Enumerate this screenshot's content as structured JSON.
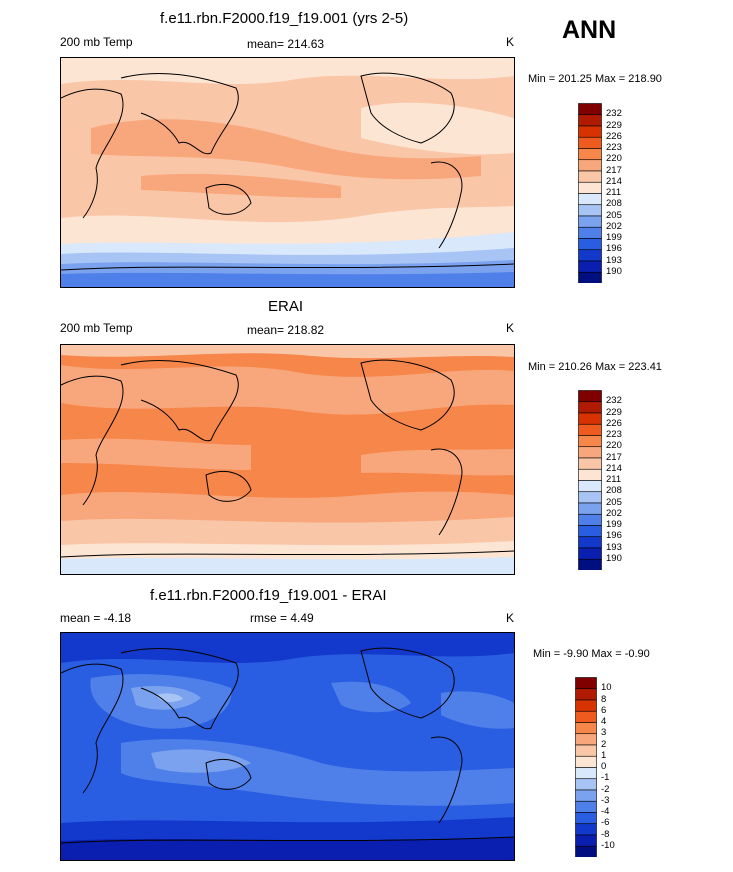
{
  "season": "ANN",
  "units": "K",
  "panels": [
    {
      "title": "f.e11.rbn.F2000.f19_f19.001 (yrs 2-5)",
      "left_label": "200 mb Temp",
      "center_label": "mean= 214.63",
      "minmax": "Min = 201.25 Max = 218.90"
    },
    {
      "title": "ERAI",
      "left_label": "200 mb Temp",
      "center_label": "mean= 218.82",
      "minmax": "Min = 210.26 Max = 223.41"
    },
    {
      "title": "f.e11.rbn.F2000.f19_f19.001 - ERAI",
      "left_label": "mean =  -4.18",
      "center_label": "rmse =   4.49",
      "minmax": "Min =  -9.90 Max =  -0.90"
    }
  ],
  "colorbars": {
    "temp_labels": [
      "232",
      "229",
      "226",
      "223",
      "220",
      "217",
      "214",
      "211",
      "208",
      "205",
      "202",
      "199",
      "196",
      "193",
      "190"
    ],
    "diff_labels": [
      "10",
      "8",
      "6",
      "4",
      "3",
      "2",
      "1",
      "0",
      "-1",
      "-2",
      "-3",
      "-4",
      "-6",
      "-8",
      "-10"
    ],
    "colors": [
      "#800000",
      "#b01a00",
      "#d83200",
      "#ef5a1e",
      "#f7864a",
      "#f8a77c",
      "#fac6a8",
      "#fde5d3",
      "#d9e8fb",
      "#a8c4f4",
      "#7ba2ee",
      "#4f7fe8",
      "#2a5ee2",
      "#1339cc",
      "#0a1fb0",
      "#000f80"
    ]
  },
  "chart_data": [
    {
      "type": "heatmap",
      "title": "f.e11.rbn.F2000.f19_f19.001 (yrs 2-5)",
      "variable": "200 mb Temp",
      "mean": 214.63,
      "min": 201.25,
      "max": 218.9,
      "units": "K",
      "contour_levels": [
        190,
        193,
        196,
        199,
        202,
        205,
        208,
        211,
        214,
        217,
        220,
        223,
        226,
        229,
        232
      ],
      "projection": "global cylindrical equidistant, Pacific-centered"
    },
    {
      "type": "heatmap",
      "title": "ERAI",
      "variable": "200 mb Temp",
      "mean": 218.82,
      "min": 210.26,
      "max": 223.41,
      "units": "K",
      "contour_levels": [
        190,
        193,
        196,
        199,
        202,
        205,
        208,
        211,
        214,
        217,
        220,
        223,
        226,
        229,
        232
      ],
      "projection": "global cylindrical equidistant, Pacific-centered"
    },
    {
      "type": "heatmap",
      "title": "f.e11.rbn.F2000.f19_f19.001 - ERAI",
      "mean": -4.18,
      "rmse": 4.49,
      "min": -9.9,
      "max": -0.9,
      "units": "K",
      "contour_levels": [
        -10,
        -8,
        -6,
        -4,
        -3,
        -2,
        -1,
        0,
        1,
        2,
        3,
        4,
        6,
        8,
        10
      ],
      "projection": "global cylindrical equidistant, Pacific-centered"
    }
  ]
}
